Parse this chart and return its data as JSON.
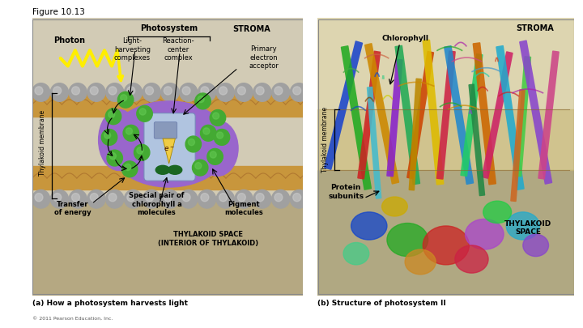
{
  "figure_title": "Figure 10.13",
  "bg_color": "#ffffff",
  "panel_a": {
    "label": "(a) How a photosystem harvests light",
    "copyright": "© 2011 Pearson Education, Inc.",
    "stroma_color": "#d2cbb5",
    "thylakoid_interior_color": "#b5a882",
    "lipid_color": "#c8963c",
    "sphere_color": "#a0a0a0",
    "sphere_highlight": "#d0d0d0",
    "photosystem_color": "#9966cc",
    "reaction_center_color": "#b0c4e0",
    "rc_inner_color": "#8899cc",
    "green_color": "#44aa33",
    "dark_green_color": "#1a6622",
    "photon_color": "#ffee00",
    "electron_color": "#ffcc44",
    "text_photon": "Photon",
    "text_photosystem": "Photosystem",
    "text_stroma": "STROMA",
    "text_light_harvesting": "Light-\nharvesting\ncomplexes",
    "text_reaction_center": "Reaction-\ncenter\ncomplex",
    "text_primary": "Primary\nelectron\nacceptor",
    "text_thylakoid_membrane": "Thylakoid membrane",
    "text_transfer": "Transfer\nof energy",
    "text_special_pair": "Special pair of\nchlorophyll a\nmolecules",
    "text_pigment": "Pigment\nmolecules",
    "text_thylakoid_space": "THYLAKOID SPACE\n(INTERIOR OF THYLAKOID)"
  },
  "panel_b": {
    "label": "(b) Structure of photosystem II",
    "stroma_color": "#ddd5b0",
    "membrane_color": "#c8b878",
    "thylakoid_color": "#b0a882",
    "text_chlorophyll": "Chlorophyll",
    "text_stroma": "STROMA",
    "text_protein": "Protein\nsubunits",
    "text_thylakoid_space": "THYLAKOID\nSPACE",
    "text_thylakoid_membrane": "Thylakoid membrane",
    "protein_colors": [
      "#1144cc",
      "#22aa22",
      "#cc2222",
      "#cc8800",
      "#aa22aa",
      "#22ccaa",
      "#cccc00",
      "#884400",
      "#4499cc",
      "#cc6644",
      "#44cc88",
      "#8844cc",
      "#cc4488",
      "#44aa44",
      "#cc4422"
    ]
  }
}
